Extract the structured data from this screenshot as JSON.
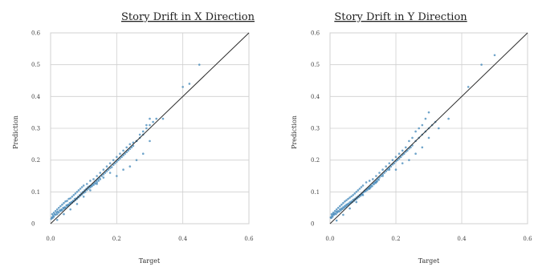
{
  "style": {
    "point_color": "#3f86b8",
    "line_color": "#2b2b2b",
    "grid_color": "#cfcfcf",
    "frame_color": "#d0d0d0"
  },
  "chart_data": [
    {
      "type": "scatter",
      "title": "Story Drift in X Direction",
      "xlabel": "Target",
      "ylabel": "Prediction",
      "xlim": [
        0,
        0.6
      ],
      "ylim": [
        0,
        0.6
      ],
      "xticks": [
        "0.0",
        "0.2",
        "0.4",
        "0.6"
      ],
      "yticks": [
        "0",
        "0.1",
        "0.2",
        "0.3",
        "0.4",
        "0.5",
        "0.6"
      ],
      "xtick_values": [
        0,
        0.2,
        0.4,
        0.6
      ],
      "ytick_values": [
        0,
        0.1,
        0.2,
        0.3,
        0.4,
        0.5,
        0.6
      ],
      "grid": true,
      "reference_line": "y = x",
      "x": [
        0.002,
        0.004,
        0.006,
        0.008,
        0.01,
        0.012,
        0.015,
        0.018,
        0.02,
        0.022,
        0.025,
        0.028,
        0.03,
        0.033,
        0.035,
        0.038,
        0.04,
        0.043,
        0.045,
        0.048,
        0.05,
        0.053,
        0.055,
        0.058,
        0.06,
        0.063,
        0.065,
        0.068,
        0.07,
        0.073,
        0.075,
        0.078,
        0.08,
        0.083,
        0.085,
        0.088,
        0.09,
        0.093,
        0.095,
        0.098,
        0.1,
        0.103,
        0.105,
        0.108,
        0.11,
        0.113,
        0.115,
        0.118,
        0.12,
        0.123,
        0.125,
        0.128,
        0.13,
        0.133,
        0.135,
        0.138,
        0.14,
        0.143,
        0.145,
        0.148,
        0.15,
        0.155,
        0.16,
        0.165,
        0.17,
        0.175,
        0.18,
        0.185,
        0.19,
        0.195,
        0.2,
        0.205,
        0.21,
        0.215,
        0.22,
        0.225,
        0.23,
        0.235,
        0.24,
        0.245,
        0.25,
        0.26,
        0.27,
        0.28,
        0.29,
        0.3,
        0.31,
        0.32,
        0.005,
        0.01,
        0.015,
        0.02,
        0.025,
        0.03,
        0.035,
        0.04,
        0.045,
        0.05,
        0.055,
        0.06,
        0.065,
        0.07,
        0.075,
        0.08,
        0.085,
        0.09,
        0.095,
        0.1,
        0.11,
        0.12,
        0.13,
        0.14,
        0.15,
        0.16,
        0.17,
        0.18,
        0.19,
        0.2,
        0.21,
        0.22,
        0.23,
        0.24,
        0.25,
        0.26,
        0.27,
        0.28,
        0.29,
        0.3,
        0.02,
        0.04,
        0.06,
        0.08,
        0.1,
        0.12,
        0.14,
        0.16,
        0.18,
        0.2,
        0.22,
        0.24,
        0.26,
        0.28,
        0.3,
        0.34,
        0.4,
        0.42,
        0.45
      ],
      "y": [
        0.015,
        0.02,
        0.018,
        0.025,
        0.022,
        0.03,
        0.028,
        0.035,
        0.03,
        0.038,
        0.035,
        0.042,
        0.04,
        0.045,
        0.042,
        0.05,
        0.047,
        0.052,
        0.05,
        0.058,
        0.055,
        0.06,
        0.058,
        0.065,
        0.062,
        0.068,
        0.066,
        0.072,
        0.07,
        0.078,
        0.074,
        0.08,
        0.078,
        0.085,
        0.083,
        0.09,
        0.088,
        0.095,
        0.092,
        0.1,
        0.097,
        0.105,
        0.1,
        0.11,
        0.106,
        0.115,
        0.11,
        0.118,
        0.114,
        0.12,
        0.118,
        0.125,
        0.122,
        0.13,
        0.126,
        0.135,
        0.13,
        0.14,
        0.135,
        0.145,
        0.14,
        0.15,
        0.155,
        0.16,
        0.165,
        0.17,
        0.175,
        0.178,
        0.185,
        0.19,
        0.195,
        0.2,
        0.205,
        0.21,
        0.215,
        0.22,
        0.225,
        0.23,
        0.235,
        0.24,
        0.245,
        0.26,
        0.27,
        0.28,
        0.3,
        0.31,
        0.32,
        0.33,
        0.03,
        0.035,
        0.04,
        0.045,
        0.05,
        0.055,
        0.06,
        0.065,
        0.07,
        0.072,
        0.078,
        0.08,
        0.085,
        0.09,
        0.095,
        0.1,
        0.105,
        0.11,
        0.115,
        0.12,
        0.125,
        0.135,
        0.14,
        0.15,
        0.16,
        0.17,
        0.18,
        0.19,
        0.2,
        0.21,
        0.22,
        0.23,
        0.24,
        0.25,
        0.255,
        0.26,
        0.28,
        0.29,
        0.31,
        0.33,
        0.012,
        0.03,
        0.045,
        0.062,
        0.085,
        0.105,
        0.125,
        0.145,
        0.16,
        0.15,
        0.17,
        0.18,
        0.2,
        0.22,
        0.26,
        0.33,
        0.43,
        0.44,
        0.5
      ]
    },
    {
      "type": "scatter",
      "title": "Story Drift in Y Direction",
      "xlabel": "Target",
      "ylabel": "Prediction",
      "xlim": [
        0,
        0.6
      ],
      "ylim": [
        0,
        0.6
      ],
      "xticks": [
        "0.0",
        "0.2",
        "0.4",
        "0.6"
      ],
      "yticks": [
        "0",
        "0.1",
        "0.2",
        "0.3",
        "0.4",
        "0.5",
        "0.6"
      ],
      "xtick_values": [
        0,
        0.2,
        0.4,
        0.6
      ],
      "ytick_values": [
        0,
        0.1,
        0.2,
        0.3,
        0.4,
        0.5,
        0.6
      ],
      "grid": true,
      "reference_line": "y = x",
      "x": [
        0.002,
        0.004,
        0.006,
        0.008,
        0.01,
        0.012,
        0.015,
        0.018,
        0.02,
        0.022,
        0.025,
        0.028,
        0.03,
        0.033,
        0.035,
        0.038,
        0.04,
        0.043,
        0.045,
        0.048,
        0.05,
        0.053,
        0.055,
        0.058,
        0.06,
        0.063,
        0.065,
        0.068,
        0.07,
        0.073,
        0.075,
        0.078,
        0.08,
        0.083,
        0.085,
        0.088,
        0.09,
        0.093,
        0.095,
        0.098,
        0.1,
        0.103,
        0.105,
        0.108,
        0.11,
        0.113,
        0.115,
        0.118,
        0.12,
        0.123,
        0.125,
        0.128,
        0.13,
        0.133,
        0.135,
        0.138,
        0.14,
        0.143,
        0.145,
        0.148,
        0.15,
        0.155,
        0.16,
        0.165,
        0.17,
        0.175,
        0.18,
        0.185,
        0.19,
        0.195,
        0.2,
        0.205,
        0.21,
        0.215,
        0.22,
        0.225,
        0.23,
        0.235,
        0.24,
        0.245,
        0.25,
        0.26,
        0.27,
        0.28,
        0.29,
        0.3,
        0.31,
        0.32,
        0.005,
        0.01,
        0.015,
        0.02,
        0.025,
        0.03,
        0.035,
        0.04,
        0.045,
        0.05,
        0.055,
        0.06,
        0.065,
        0.07,
        0.075,
        0.08,
        0.085,
        0.09,
        0.095,
        0.1,
        0.11,
        0.12,
        0.13,
        0.14,
        0.15,
        0.16,
        0.17,
        0.18,
        0.19,
        0.2,
        0.21,
        0.22,
        0.23,
        0.24,
        0.25,
        0.26,
        0.27,
        0.28,
        0.29,
        0.3,
        0.02,
        0.04,
        0.06,
        0.08,
        0.1,
        0.12,
        0.14,
        0.16,
        0.18,
        0.2,
        0.22,
        0.24,
        0.26,
        0.28,
        0.3,
        0.33,
        0.36,
        0.42,
        0.46,
        0.5
      ],
      "y": [
        0.02,
        0.018,
        0.025,
        0.022,
        0.03,
        0.028,
        0.033,
        0.03,
        0.038,
        0.035,
        0.04,
        0.038,
        0.045,
        0.042,
        0.048,
        0.046,
        0.052,
        0.05,
        0.056,
        0.054,
        0.06,
        0.058,
        0.063,
        0.061,
        0.067,
        0.065,
        0.07,
        0.068,
        0.075,
        0.072,
        0.078,
        0.076,
        0.082,
        0.08,
        0.086,
        0.084,
        0.09,
        0.088,
        0.094,
        0.092,
        0.098,
        0.1,
        0.104,
        0.102,
        0.108,
        0.106,
        0.112,
        0.11,
        0.116,
        0.114,
        0.12,
        0.118,
        0.126,
        0.124,
        0.13,
        0.128,
        0.135,
        0.133,
        0.14,
        0.138,
        0.145,
        0.15,
        0.155,
        0.16,
        0.165,
        0.17,
        0.175,
        0.18,
        0.186,
        0.19,
        0.196,
        0.2,
        0.205,
        0.21,
        0.216,
        0.22,
        0.226,
        0.23,
        0.236,
        0.24,
        0.246,
        0.26,
        0.27,
        0.28,
        0.29,
        0.3,
        0.31,
        0.32,
        0.03,
        0.035,
        0.04,
        0.045,
        0.05,
        0.055,
        0.06,
        0.065,
        0.07,
        0.074,
        0.078,
        0.082,
        0.086,
        0.09,
        0.095,
        0.1,
        0.105,
        0.11,
        0.115,
        0.12,
        0.13,
        0.135,
        0.14,
        0.15,
        0.16,
        0.17,
        0.18,
        0.19,
        0.2,
        0.21,
        0.22,
        0.23,
        0.24,
        0.26,
        0.27,
        0.29,
        0.3,
        0.31,
        0.33,
        0.35,
        0.01,
        0.028,
        0.048,
        0.068,
        0.09,
        0.11,
        0.13,
        0.15,
        0.17,
        0.17,
        0.19,
        0.2,
        0.22,
        0.24,
        0.27,
        0.3,
        0.33,
        0.43,
        0.5,
        0.53
      ]
    }
  ]
}
